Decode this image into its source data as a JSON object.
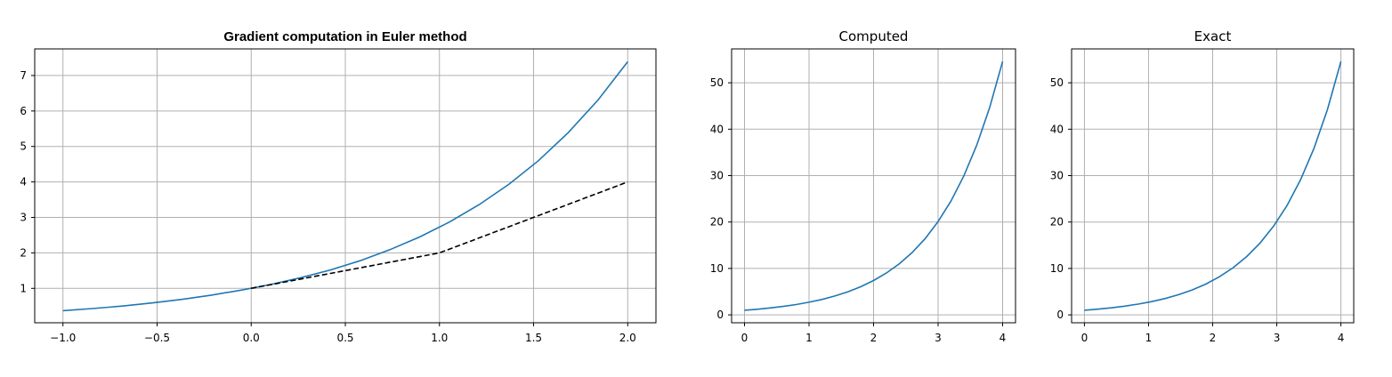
{
  "chart_data": [
    {
      "type": "line",
      "title": "Gradient computation in Euler method",
      "xlabel": "",
      "ylabel": "",
      "xlim": [
        -1.15,
        2.15
      ],
      "ylim": [
        0.03,
        7.75
      ],
      "xticks": [
        -1.0,
        -0.5,
        0.0,
        0.5,
        1.0,
        1.5,
        2.0
      ],
      "xtick_labels": [
        "−1.0",
        "−0.5",
        "0.0",
        "0.5",
        "1.0",
        "1.5",
        "2.0"
      ],
      "yticks": [
        1,
        2,
        3,
        4,
        5,
        6,
        7
      ],
      "ytick_labels": [
        "1",
        "2",
        "3",
        "4",
        "5",
        "6",
        "7"
      ],
      "grid": true,
      "series": [
        {
          "style": "solid",
          "color": "#1f77b4",
          "x": [
            -1.0,
            -0.842,
            -0.684,
            -0.526,
            -0.368,
            -0.211,
            -0.053,
            0.105,
            0.263,
            0.421,
            0.579,
            0.737,
            0.895,
            1.053,
            1.211,
            1.368,
            1.526,
            1.684,
            1.842,
            2.0
          ],
          "y": [
            0.37,
            0.43,
            0.5,
            0.59,
            0.69,
            0.81,
            0.95,
            1.11,
            1.3,
            1.52,
            1.78,
            2.09,
            2.45,
            2.87,
            3.36,
            3.93,
            4.6,
            5.39,
            6.31,
            7.39
          ]
        },
        {
          "style": "dashed",
          "color": "#000000",
          "x": [
            0.0,
            1.0,
            2.0
          ],
          "y": [
            1.0,
            2.0,
            4.0
          ]
        }
      ]
    },
    {
      "type": "line",
      "title": "Computed",
      "xlim": [
        -0.2,
        4.2
      ],
      "ylim": [
        -1.7,
        57.3
      ],
      "xticks": [
        0,
        1,
        2,
        3,
        4
      ],
      "xtick_labels": [
        "0",
        "1",
        "2",
        "3",
        "4"
      ],
      "yticks": [
        0,
        10,
        20,
        30,
        40,
        50
      ],
      "ytick_labels": [
        "0",
        "10",
        "20",
        "30",
        "40",
        "50"
      ],
      "grid": true,
      "series": [
        {
          "style": "solid",
          "color": "#1f77b4",
          "x": [
            0,
            0.2,
            0.4,
            0.6,
            0.8,
            1.0,
            1.2,
            1.4,
            1.6,
            1.8,
            2.0,
            2.2,
            2.4,
            2.6,
            2.8,
            3.0,
            3.2,
            3.4,
            3.6,
            3.8,
            4.0
          ],
          "y": [
            1.0,
            1.22,
            1.49,
            1.82,
            2.23,
            2.72,
            3.32,
            4.06,
            4.95,
            6.05,
            7.39,
            9.03,
            11.02,
            13.46,
            16.44,
            20.09,
            24.53,
            29.96,
            36.6,
            44.7,
            54.6
          ]
        }
      ]
    },
    {
      "type": "line",
      "title": "Exact",
      "xlim": [
        -0.2,
        4.2
      ],
      "ylim": [
        -1.7,
        57.3
      ],
      "xticks": [
        0,
        1,
        2,
        3,
        4
      ],
      "xtick_labels": [
        "0",
        "1",
        "2",
        "3",
        "4"
      ],
      "yticks": [
        0,
        10,
        20,
        30,
        40,
        50
      ],
      "ytick_labels": [
        "0",
        "10",
        "20",
        "30",
        "40",
        "50"
      ],
      "grid": true,
      "series": [
        {
          "style": "solid",
          "color": "#1f77b4",
          "x": [
            0,
            0.21,
            0.42,
            0.63,
            0.84,
            1.05,
            1.26,
            1.47,
            1.68,
            1.89,
            2.11,
            2.32,
            2.53,
            2.74,
            2.95,
            3.16,
            3.37,
            3.58,
            3.79,
            4.0
          ],
          "y": [
            1.0,
            1.23,
            1.52,
            1.88,
            2.32,
            2.86,
            3.53,
            4.35,
            5.37,
            6.62,
            8.25,
            10.18,
            12.55,
            15.49,
            19.11,
            23.57,
            29.08,
            35.87,
            44.26,
            54.6
          ]
        }
      ]
    }
  ]
}
